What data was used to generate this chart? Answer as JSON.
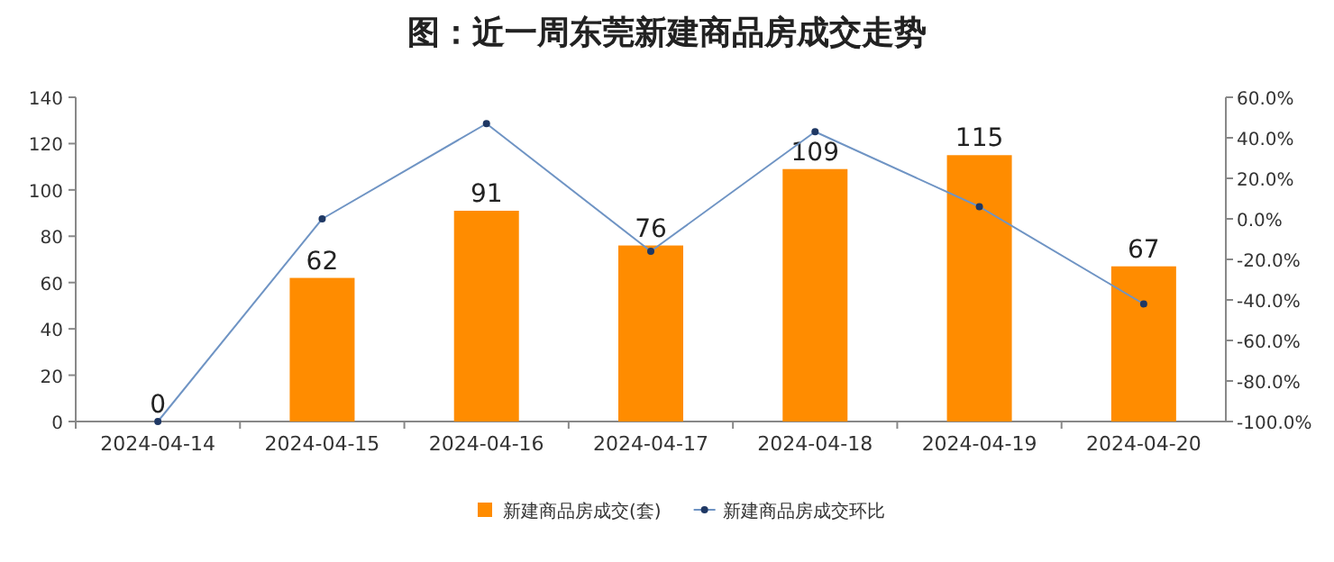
{
  "chart_data": {
    "type": "bar",
    "title": "图：近一周东莞新建商品房成交走势",
    "categories": [
      "2024-04-14",
      "2024-04-15",
      "2024-04-16",
      "2024-04-17",
      "2024-04-18",
      "2024-04-19",
      "2024-04-20"
    ],
    "series": [
      {
        "name": "新建商品房成交(套)",
        "color": "#ff8c00",
        "values": [
          0,
          62,
          91,
          76,
          109,
          115,
          67
        ],
        "value_labels": [
          "0",
          "62",
          "91",
          "76",
          "109",
          "115",
          "67"
        ]
      },
      {
        "name": "新建商品房成交环比",
        "type": "line",
        "axis": "y2",
        "color": "#6f94c4",
        "marker": "circle",
        "values": [
          -100,
          0,
          47,
          -16,
          43,
          6,
          -42
        ]
      }
    ],
    "ylim": [
      0,
      140
    ],
    "yticks": [
      0,
      20,
      40,
      60,
      80,
      100,
      120,
      140
    ],
    "y2lim": [
      -100,
      60
    ],
    "y2ticks": [
      {
        "value": -100,
        "label": "-100.0%"
      },
      {
        "value": -80,
        "label": "-80.0%"
      },
      {
        "value": -60,
        "label": "-60.0%"
      },
      {
        "value": -40,
        "label": "-40.0%"
      },
      {
        "value": -20,
        "label": "-20.0%"
      },
      {
        "value": 0,
        "label": "0.0%"
      },
      {
        "value": 20,
        "label": "20.0%"
      },
      {
        "value": 40,
        "label": "40.0%"
      },
      {
        "value": 60,
        "label": "60.0%"
      }
    ],
    "legend": "bottom",
    "grid": false
  }
}
